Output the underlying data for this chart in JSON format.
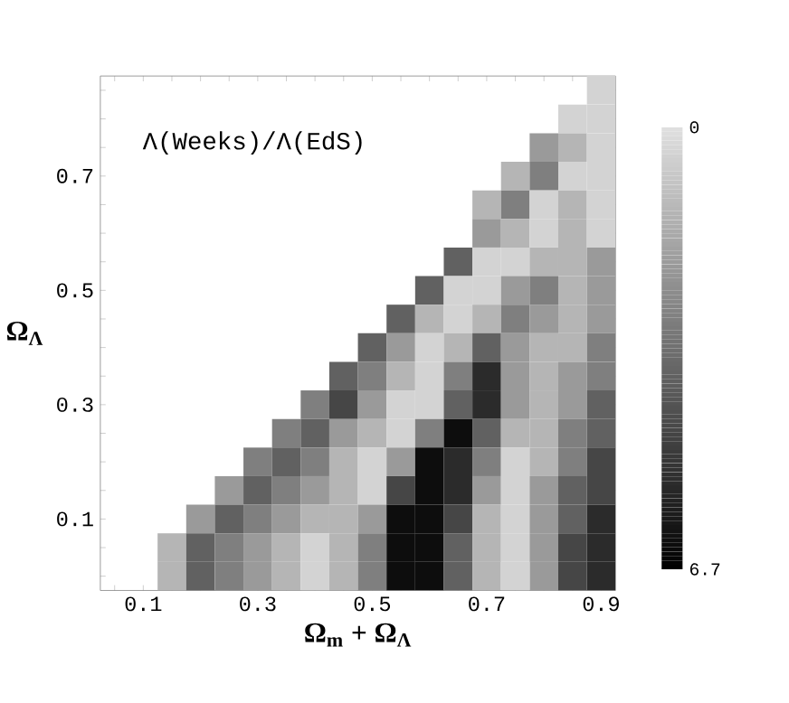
{
  "chart_data": {
    "type": "heatmap",
    "title": "Λ(Weeks)/Λ(EdS)",
    "xlabel": "Ω$_{m}$ + Ω$_{Λ}$",
    "ylabel": "Ω$_{Λ}$",
    "categories": [
      null,
      "0.1",
      null,
      null,
      null,
      "0.3",
      null,
      null,
      null,
      "0.5",
      null,
      null,
      null,
      "0.7",
      null,
      null,
      null,
      "0.9"
    ],
    "y_categories": [
      null,
      null,
      null,
      "0.7",
      null,
      null,
      null,
      "0.5",
      null,
      null,
      null,
      "0.3",
      null,
      null,
      null,
      "0.1",
      null,
      null
    ],
    "clim": [
      0,
      6.7
    ],
    "cticks": [
      0,
      6.7
    ],
    "cells": [
      [
        null,
        null,
        null,
        null,
        null,
        null,
        null,
        null,
        null,
        null,
        null,
        null,
        null,
        null,
        null,
        null,
        null,
        0.4
      ],
      [
        null,
        null,
        null,
        null,
        null,
        null,
        null,
        null,
        null,
        null,
        null,
        null,
        null,
        null,
        null,
        null,
        0.4,
        0.4
      ],
      [
        null,
        null,
        null,
        null,
        null,
        null,
        null,
        null,
        null,
        null,
        null,
        null,
        null,
        null,
        null,
        2.1,
        1.3,
        0.4
      ],
      [
        null,
        null,
        null,
        null,
        null,
        null,
        null,
        null,
        null,
        null,
        null,
        null,
        null,
        null,
        1.3,
        2.9,
        0.4,
        0.4
      ],
      [
        null,
        null,
        null,
        null,
        null,
        null,
        null,
        null,
        null,
        null,
        null,
        null,
        null,
        1.3,
        2.9,
        0.4,
        1.3,
        0.4
      ],
      [
        null,
        null,
        null,
        null,
        null,
        null,
        null,
        null,
        null,
        null,
        null,
        null,
        null,
        2.1,
        1.3,
        0.4,
        1.3,
        0.4
      ],
      [
        null,
        null,
        null,
        null,
        null,
        null,
        null,
        null,
        null,
        null,
        null,
        null,
        3.8,
        0.4,
        0.4,
        1.3,
        1.3,
        2.1
      ],
      [
        null,
        null,
        null,
        null,
        null,
        null,
        null,
        null,
        null,
        null,
        null,
        3.8,
        0.4,
        0.4,
        2.1,
        2.9,
        1.3,
        2.1
      ],
      [
        null,
        null,
        null,
        null,
        null,
        null,
        null,
        null,
        null,
        null,
        3.8,
        1.3,
        0.4,
        1.3,
        2.9,
        2.1,
        1.3,
        2.1
      ],
      [
        null,
        null,
        null,
        null,
        null,
        null,
        null,
        null,
        null,
        3.8,
        2.1,
        0.4,
        1.3,
        3.8,
        2.1,
        1.3,
        1.3,
        2.9
      ],
      [
        null,
        null,
        null,
        null,
        null,
        null,
        null,
        null,
        3.8,
        2.9,
        1.3,
        0.4,
        2.9,
        5.4,
        2.1,
        1.3,
        2.1,
        2.9
      ],
      [
        null,
        null,
        null,
        null,
        null,
        null,
        null,
        2.9,
        4.6,
        2.1,
        0.4,
        0.4,
        3.8,
        5.4,
        2.1,
        1.3,
        2.1,
        3.8
      ],
      [
        null,
        null,
        null,
        null,
        null,
        null,
        2.9,
        3.8,
        2.1,
        1.3,
        0.4,
        2.9,
        6.3,
        3.8,
        1.3,
        1.3,
        2.9,
        3.8
      ],
      [
        null,
        null,
        null,
        null,
        null,
        2.9,
        3.8,
        2.9,
        1.3,
        0.4,
        2.1,
        6.3,
        5.4,
        2.9,
        0.4,
        1.3,
        2.9,
        4.6
      ],
      [
        null,
        null,
        null,
        null,
        2.1,
        3.8,
        2.9,
        2.1,
        1.3,
        0.4,
        4.6,
        6.3,
        5.4,
        2.1,
        0.4,
        2.1,
        3.8,
        4.6
      ],
      [
        null,
        null,
        null,
        2.1,
        3.8,
        2.9,
        2.1,
        1.3,
        1.3,
        2.1,
        6.3,
        6.3,
        4.6,
        1.3,
        0.4,
        2.1,
        3.8,
        5.4
      ],
      [
        null,
        null,
        1.3,
        3.8,
        2.9,
        2.1,
        1.3,
        0.4,
        1.3,
        2.9,
        6.3,
        6.3,
        3.8,
        1.3,
        0.4,
        2.1,
        4.6,
        5.4
      ],
      [
        null,
        null,
        1.3,
        3.8,
        2.9,
        2.1,
        1.3,
        0.4,
        1.3,
        2.9,
        6.3,
        6.3,
        3.8,
        1.3,
        0.4,
        2.1,
        4.6,
        5.4
      ]
    ]
  }
}
